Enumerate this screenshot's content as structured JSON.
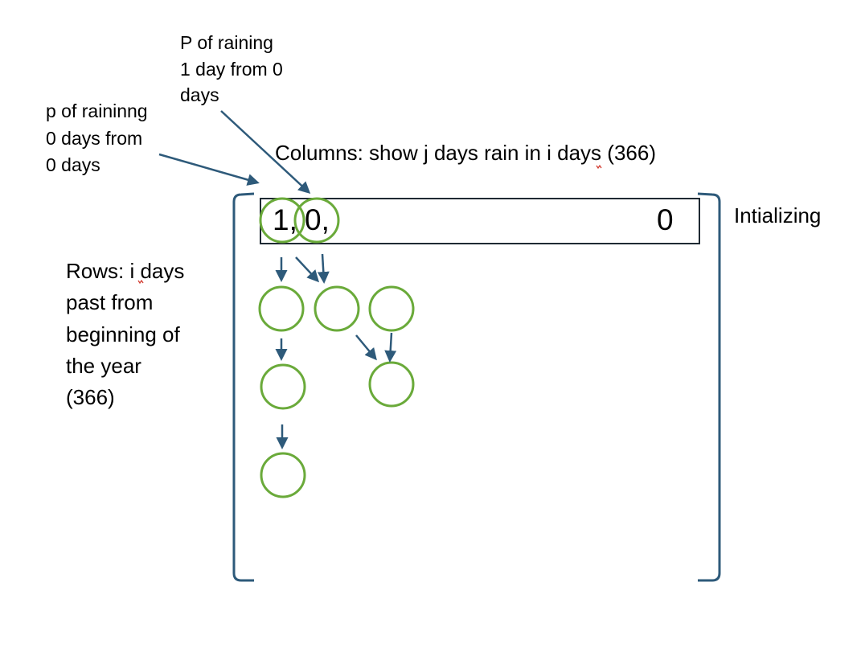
{
  "annotations": {
    "p_rain_one": [
      "P of raining",
      "1 day from 0",
      "days"
    ],
    "p_rain_zero": [
      "p of raininng",
      "0 days from",
      "0 days"
    ],
    "columns": "Columns: show j days rain in i days (366)",
    "initializing": "Intializing",
    "rows": [
      "Rows: i days",
      "past from",
      "beginning of",
      "the year",
      "(366)"
    ]
  },
  "first_row": {
    "values": [
      "1,",
      "0,",
      "0"
    ]
  },
  "colors": {
    "arrow": "#2e5a7a",
    "circle": "#6aaa3a",
    "bracket": "#2e5a7a",
    "box_border": "#1f2a33"
  }
}
